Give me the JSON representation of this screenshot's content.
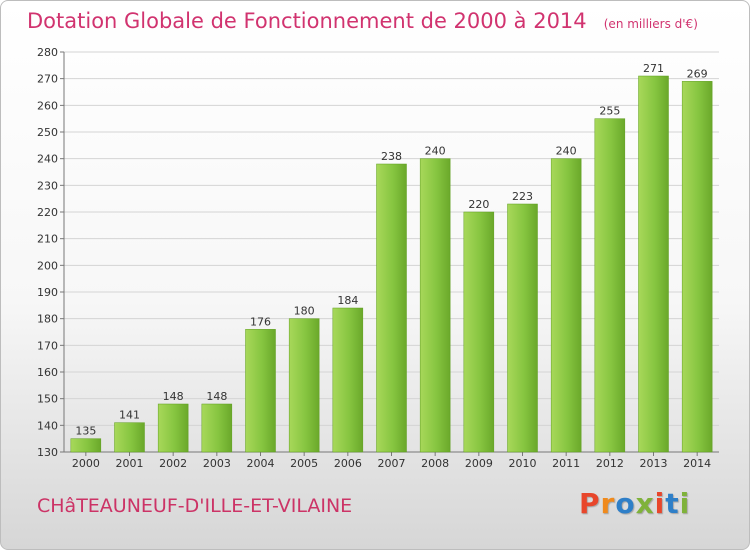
{
  "header": {
    "title": "Dotation Globale de Fonctionnement de 2000 à 2014",
    "unit": "(en milliers d'€)"
  },
  "commune": "CHâTEAUNEUF-D'ILLE-ET-VILAINE",
  "logo": {
    "text": "Proxiti",
    "colors": [
      "#e8462b",
      "#f08a1c",
      "#2e7fc8",
      "#7fb23a",
      "#e8462b",
      "#2e7fc8",
      "#7fb23a"
    ]
  },
  "chart_data": {
    "type": "bar",
    "categories": [
      "2000",
      "2001",
      "2002",
      "2003",
      "2004",
      "2005",
      "2006",
      "2007",
      "2008",
      "2009",
      "2010",
      "2011",
      "2012",
      "2013",
      "2014"
    ],
    "values": [
      135,
      141,
      148,
      148,
      176,
      180,
      184,
      238,
      240,
      220,
      223,
      240,
      255,
      271,
      269
    ],
    "title": "Dotation Globale de Fonctionnement de 2000 à 2014",
    "xlabel": "",
    "ylabel": "",
    "ylim": [
      130,
      280
    ],
    "yticks": [
      130,
      140,
      150,
      160,
      170,
      180,
      190,
      200,
      210,
      220,
      230,
      240,
      250,
      260,
      270,
      280
    ],
    "grid": true,
    "bar_color": "#86c540",
    "bar_color_dark": "#5f9e1f"
  }
}
